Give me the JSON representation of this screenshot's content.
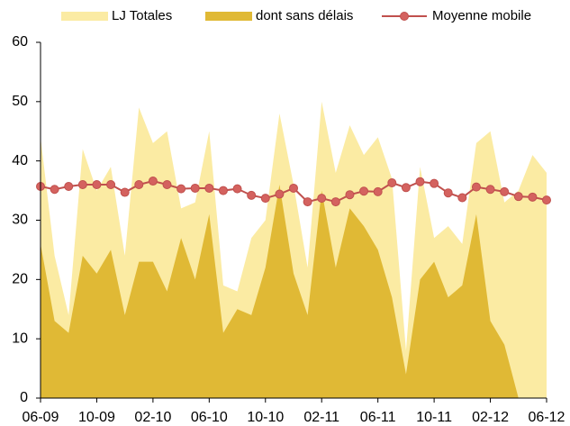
{
  "chart_data": {
    "type": "area",
    "categories": [
      "06-09",
      null,
      null,
      null,
      "10-09",
      null,
      null,
      null,
      "02-10",
      null,
      null,
      null,
      "06-10",
      null,
      null,
      null,
      "10-10",
      null,
      null,
      null,
      "02-11",
      null,
      null,
      null,
      "06-11",
      null,
      null,
      null,
      "10-11",
      null,
      null,
      null,
      "02-12",
      null,
      null,
      null,
      "06-12"
    ],
    "series": [
      {
        "name": "LJ Totales",
        "type": "area",
        "color": "#fbeba3",
        "values": [
          44,
          24,
          14,
          42,
          35,
          39,
          24,
          49,
          43,
          45,
          32,
          33,
          45,
          19,
          18,
          27,
          30,
          48,
          36,
          22,
          50,
          38,
          46,
          41,
          44,
          37,
          8,
          39,
          27,
          29,
          26,
          43,
          45,
          33,
          35,
          41,
          38
        ]
      },
      {
        "name": "dont sans délais",
        "type": "area",
        "color": "#e0b935",
        "values": [
          26,
          13,
          11,
          24,
          21,
          25,
          14,
          23,
          23,
          18,
          27,
          20,
          31,
          11,
          15,
          14,
          22,
          36,
          21,
          14,
          35,
          22,
          32,
          29,
          25,
          17,
          4,
          20,
          23,
          17,
          19,
          31,
          13,
          9,
          0,
          0,
          0
        ]
      },
      {
        "name": "Moyenne mobile",
        "type": "line",
        "color": "#c0504d",
        "values": [
          35.7,
          35.2,
          35.7,
          36,
          36,
          36,
          34.7,
          36,
          36.6,
          36,
          35.3,
          35.4,
          35.4,
          35,
          35.3,
          34.2,
          33.7,
          34.4,
          35.4,
          33.1,
          33.7,
          33.1,
          34.3,
          34.9,
          34.8,
          36.3,
          35.5,
          36.5,
          36.2,
          34.6,
          33.8,
          35.6,
          35.2,
          34.8,
          34,
          33.9,
          33.4
        ]
      }
    ],
    "ylim": [
      0,
      60
    ],
    "yticks": [
      0,
      10,
      20,
      30,
      40,
      50,
      60
    ],
    "legend": "top"
  }
}
